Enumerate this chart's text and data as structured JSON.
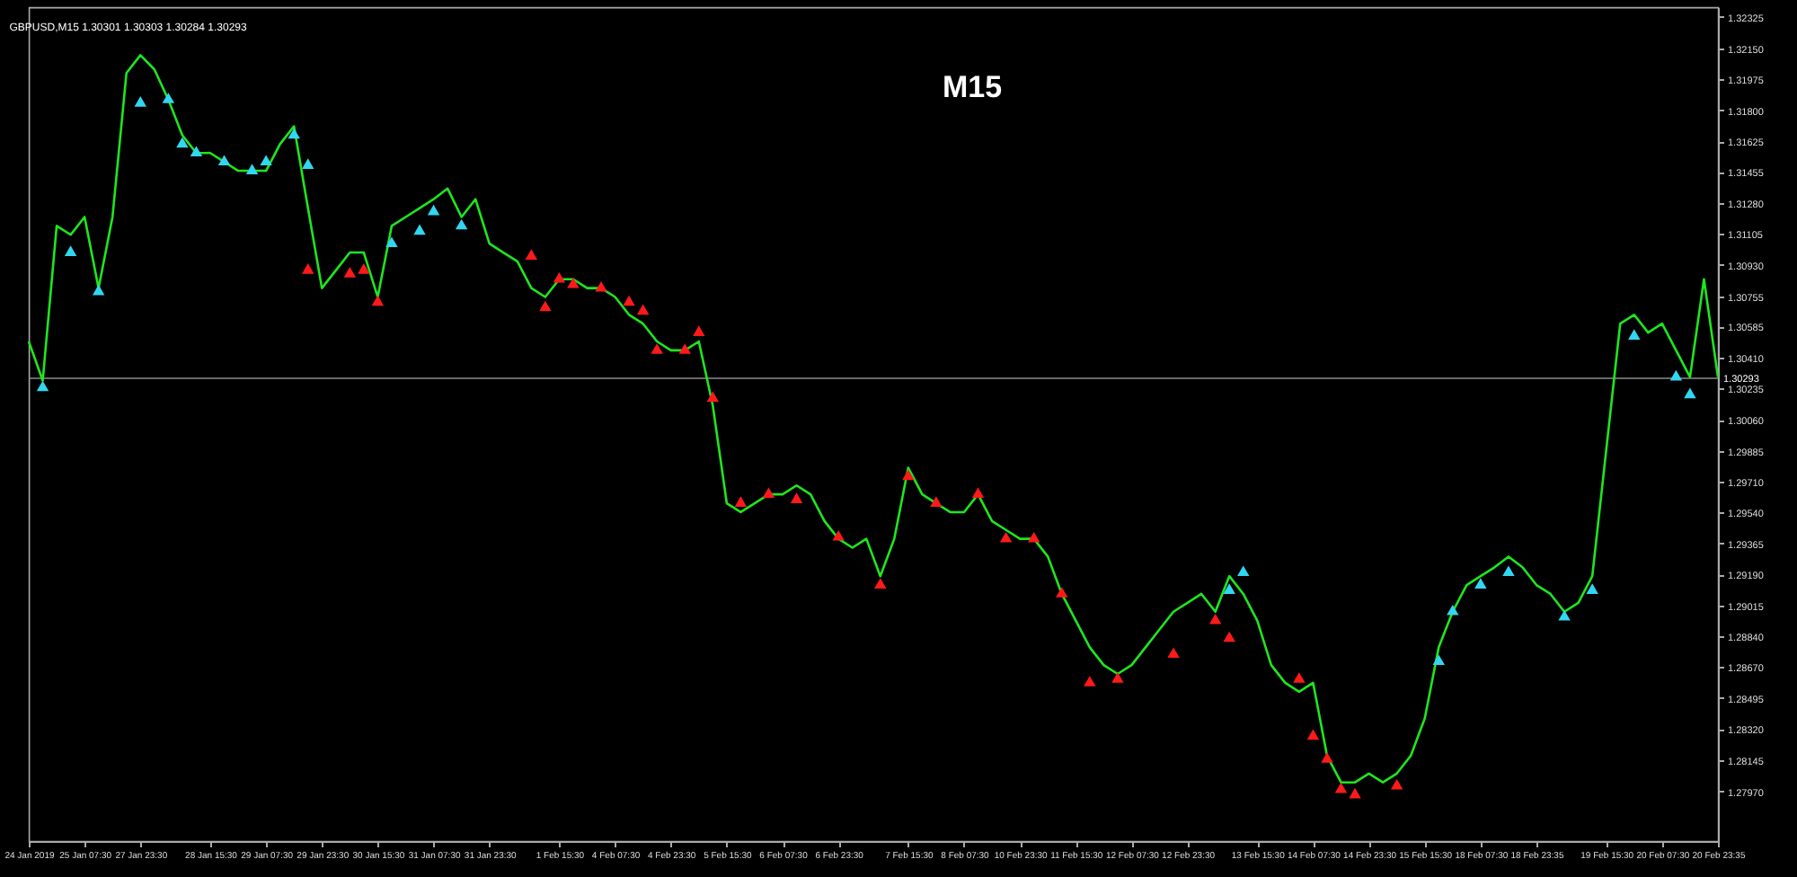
{
  "chart_data": {
    "type": "line",
    "title": "GBPUSD,M15  1.30301 1.30303 1.30284 1.30293",
    "annotations": [
      "M15"
    ],
    "categories": [
      "24 Jan 2019",
      null,
      null,
      null,
      "25 Jan 07:30",
      null,
      null,
      null,
      "27 Jan 23:30",
      null,
      null,
      null,
      null,
      "28 Jan 15:30",
      null,
      null,
      null,
      "29 Jan 07:30",
      null,
      null,
      null,
      "29 Jan 23:30",
      null,
      null,
      null,
      "30 Jan 15:30",
      null,
      null,
      null,
      "31 Jan 07:30",
      null,
      null,
      null,
      "31 Jan 23:30",
      null,
      null,
      null,
      null,
      "1 Feb 15:30",
      null,
      null,
      null,
      "4 Feb 07:30",
      null,
      null,
      null,
      "4 Feb 23:30",
      null,
      null,
      null,
      "5 Feb 15:30",
      null,
      null,
      null,
      "6 Feb 07:30",
      null,
      null,
      null,
      "6 Feb 23:30",
      null,
      null,
      null,
      null,
      "7 Feb 15:30",
      null,
      null,
      null,
      "8 Feb 07:30",
      null,
      null,
      null,
      "10 Feb 23:30",
      null,
      null,
      null,
      "11 Feb 15:30",
      null,
      null,
      null,
      "12 Feb 07:30",
      null,
      null,
      null,
      "12 Feb 23:30",
      null,
      null,
      null,
      null,
      "13 Feb 15:30",
      null,
      null,
      null,
      "14 Feb 07:30",
      null,
      null,
      null,
      "14 Feb 23:30",
      null,
      null,
      null,
      "15 Feb 15:30",
      null,
      null,
      null,
      "18 Feb 07:30",
      null,
      null,
      null,
      "18 Feb 23:35",
      null,
      null,
      null,
      null,
      "19 Feb 15:30",
      null,
      null,
      null,
      "20 Feb 07:30",
      null,
      null,
      null,
      "20 Feb 23:35"
    ],
    "ylim": [
      1.2769,
      1.3238
    ],
    "yticks": [
      1.32325,
      {
        "value": 1.3215,
        "label": "1.32150"
      },
      1.31975,
      {
        "value": 1.318,
        "label": "1.31800"
      },
      1.31625,
      1.31455,
      {
        "value": 1.3128,
        "label": "1.31280"
      },
      1.31105,
      {
        "value": 1.3093,
        "label": "1.30930"
      },
      1.30755,
      1.30585,
      {
        "value": 1.3041,
        "label": "1.30410"
      },
      1.30235,
      {
        "value": 1.3006,
        "label": "1.30060"
      },
      1.29885,
      {
        "value": 1.2971,
        "label": "1.29710"
      },
      {
        "value": 1.2954,
        "label": "1.29540"
      },
      1.29365,
      {
        "value": 1.2919,
        "label": "1.29190"
      },
      1.29015,
      {
        "value": 1.2884,
        "label": "1.28840"
      },
      {
        "value": 1.2867,
        "label": "1.28670"
      },
      1.28495,
      {
        "value": 1.2832,
        "label": "1.28320"
      },
      1.28145,
      {
        "value": 1.2797,
        "label": "1.27970"
      }
    ],
    "ref_lines": [
      {
        "axis": "y",
        "value": 1.30293,
        "label": "1.30293",
        "color": "#8c8c8c"
      }
    ],
    "series": [
      {
        "type": "line",
        "color": "#1ee61e",
        "values": [
          1.305,
          1.3028,
          1.3115,
          1.311,
          1.312,
          1.308,
          1.312,
          1.3201,
          1.3211,
          1.3203,
          1.3186,
          1.3166,
          1.3156,
          1.3156,
          1.3151,
          1.3146,
          1.3146,
          1.3146,
          1.3161,
          1.3171,
          1.3125,
          1.308,
          1.309,
          1.31,
          1.31,
          1.3075,
          1.3115,
          1.312,
          1.3125,
          1.313,
          1.3136,
          1.312,
          1.313,
          1.3105,
          1.31,
          1.3095,
          1.308,
          1.3075,
          1.3085,
          1.3085,
          1.308,
          1.308,
          1.3075,
          1.3065,
          1.306,
          1.305,
          1.3045,
          1.3045,
          1.305,
          1.3014,
          1.2959,
          1.2954,
          1.2959,
          1.2964,
          1.2964,
          1.2969,
          1.2964,
          1.2949,
          1.2939,
          1.2934,
          1.2939,
          1.2918,
          1.2939,
          1.2979,
          1.2964,
          1.2959,
          1.2954,
          1.2954,
          1.2964,
          1.2949,
          1.2944,
          1.2939,
          1.2939,
          1.2929,
          1.2908,
          1.2893,
          1.2878,
          1.2868,
          1.2863,
          1.2868,
          1.2878,
          1.2888,
          1.2898,
          1.2903,
          1.2908,
          1.2898,
          1.2918,
          1.2908,
          1.2893,
          1.2868,
          1.2858,
          1.2853,
          1.2858,
          1.2817,
          1.2802,
          1.2802,
          1.2807,
          1.2802,
          1.2807,
          1.2817,
          1.2838,
          1.2878,
          1.2898,
          1.2913,
          1.2918,
          1.2923,
          1.2929,
          1.2923,
          1.2913,
          1.2908,
          1.2898,
          1.2903,
          1.2918,
          1.2989,
          1.306,
          1.3065,
          1.3055,
          1.306,
          1.3045,
          1.303,
          1.3085,
          1.303
        ]
      },
      {
        "type": "scatter",
        "color": "#33d6f0",
        "marker": "triangle",
        "values": [
          null,
          1.3024,
          null,
          1.31,
          null,
          1.3078,
          null,
          null,
          1.3184,
          null,
          1.3186,
          1.3161,
          1.3156,
          null,
          1.3151,
          null,
          1.3146,
          1.3151,
          null,
          1.3166,
          1.3149,
          null,
          null,
          null,
          null,
          null,
          1.3105,
          null,
          1.3112,
          1.3123,
          null,
          1.3115,
          null,
          null,
          null,
          null,
          null,
          null,
          null,
          null,
          null,
          null,
          null,
          null,
          null,
          null,
          null,
          null,
          null,
          null,
          null,
          null,
          null,
          null,
          null,
          null,
          null,
          null,
          null,
          null,
          null,
          null,
          null,
          null,
          null,
          null,
          null,
          null,
          null,
          null,
          null,
          null,
          null,
          null,
          null,
          null,
          null,
          null,
          null,
          null,
          null,
          null,
          null,
          null,
          null,
          null,
          1.291,
          1.292,
          null,
          null,
          null,
          null,
          null,
          null,
          null,
          null,
          null,
          null,
          null,
          null,
          null,
          1.287,
          1.2898,
          null,
          1.2913,
          null,
          1.292,
          null,
          null,
          null,
          1.2895,
          null,
          1.291,
          null,
          null,
          1.3053,
          null,
          null,
          1.303,
          1.302,
          null,
          null
        ]
      },
      {
        "type": "scatter",
        "color": "#ff1a1a",
        "marker": "triangle",
        "values": [
          null,
          null,
          null,
          null,
          null,
          null,
          null,
          null,
          null,
          null,
          null,
          null,
          null,
          null,
          null,
          null,
          null,
          null,
          null,
          null,
          1.309,
          null,
          null,
          1.3088,
          1.309,
          1.3072,
          null,
          null,
          null,
          null,
          null,
          null,
          null,
          null,
          null,
          null,
          1.3098,
          1.3069,
          1.3085,
          1.3082,
          null,
          1.308,
          null,
          1.3072,
          1.3067,
          1.3045,
          null,
          1.3045,
          1.3055,
          1.3018,
          null,
          1.2959,
          null,
          1.2964,
          null,
          1.2961,
          null,
          null,
          1.294,
          null,
          null,
          1.2913,
          null,
          1.2974,
          null,
          1.2959,
          null,
          null,
          1.2964,
          null,
          1.2939,
          null,
          1.2939,
          null,
          1.2908,
          null,
          1.2858,
          null,
          1.286,
          null,
          null,
          null,
          1.2874,
          null,
          null,
          1.2893,
          1.2883,
          null,
          null,
          null,
          null,
          1.286,
          1.2828,
          1.2815,
          1.2798,
          1.2795,
          null,
          null,
          1.28,
          null,
          null,
          null,
          null,
          null,
          null,
          null,
          null,
          null,
          null,
          null,
          null,
          null,
          null,
          null,
          null,
          null,
          null,
          null,
          null,
          null,
          null,
          null
        ]
      }
    ]
  }
}
